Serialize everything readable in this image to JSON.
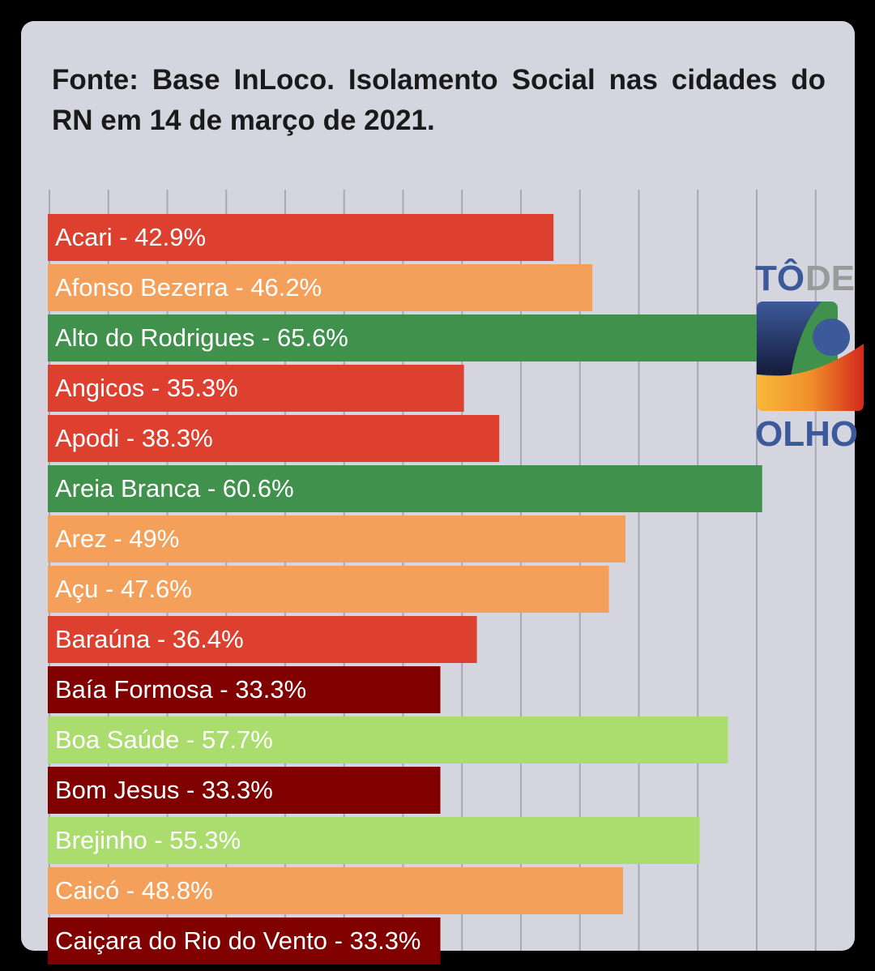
{
  "title": "Fonte: Base InLoco. Isolamento Social nas cidades do RN em 14 de março de 2021.",
  "logo": {
    "text_top_1": "TÔ",
    "text_top_2": "DE",
    "text_bottom": "OLHO"
  },
  "colors": {
    "dark_red": "#800000",
    "red": "#de4030",
    "orange": "#f4a05a",
    "light_green": "#aadd6e",
    "green": "#40914b"
  },
  "chart_data": {
    "type": "bar",
    "orientation": "horizontal",
    "title": "Fonte: Base InLoco. Isolamento Social nas cidades do RN em 14 de março de 2021.",
    "xlabel": "",
    "ylabel": "",
    "xlim": [
      0,
      65
    ],
    "grid_step": 5,
    "grid": true,
    "categories": [
      "Acari",
      "Afonso Bezerra",
      "Alto do Rodrigues",
      "Angicos",
      "Apodi",
      "Areia Branca",
      "Arez",
      "Açu",
      "Baraúna",
      "Baía Formosa",
      "Boa Saúde",
      "Bom Jesus",
      "Brejinho",
      "Caicó",
      "Caiçara do Rio do Vento"
    ],
    "values": [
      42.9,
      46.2,
      65.6,
      35.3,
      38.3,
      60.6,
      49,
      47.6,
      36.4,
      33.3,
      57.7,
      33.3,
      55.3,
      48.8,
      33.3
    ],
    "labels": [
      "Acari - 42.9%",
      "Afonso Bezerra - 46.2%",
      "Alto do Rodrigues - 65.6%",
      "Angicos - 35.3%",
      "Apodi - 38.3%",
      "Areia Branca - 60.6%",
      "Arez - 49%",
      "Açu - 47.6%",
      "Baraúna - 36.4%",
      "Baía Formosa - 33.3%",
      "Boa Saúde - 57.7%",
      "Bom Jesus - 33.3%",
      "Brejinho - 55.3%",
      "Caicó - 48.8%",
      "Caiçara do Rio do Vento - 33.3%"
    ],
    "bar_colors": [
      "red",
      "orange",
      "green",
      "red",
      "red",
      "green",
      "orange",
      "orange",
      "red",
      "dark_red",
      "light_green",
      "dark_red",
      "light_green",
      "orange",
      "dark_red"
    ]
  }
}
